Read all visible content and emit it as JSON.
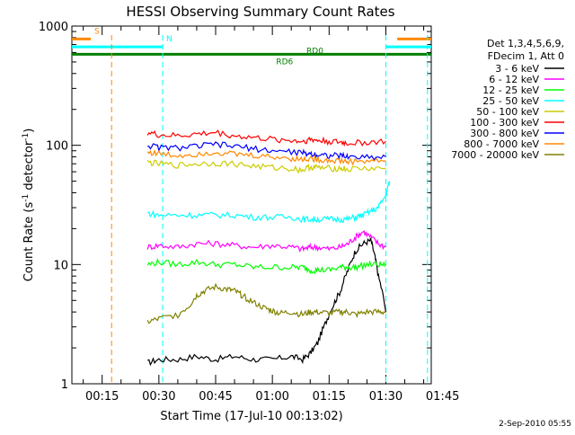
{
  "chart_data": {
    "type": "line",
    "title": "HESSI Observing Summary Count Rates",
    "xlabel": "Start Time (17-Jul-10 00:13:02)",
    "ylabel_main": "Count Rate (s",
    "ylabel_exp1": "-1",
    "ylabel_mid": " detector",
    "ylabel_exp2": "-1",
    "ylabel_end": ")",
    "footer": "2-Sep-2010 05:55",
    "y_scale": "log",
    "xlim_minutes": [
      7,
      102
    ],
    "ylim": [
      1,
      1000
    ],
    "x_ticks": [
      {
        "minutes": 15,
        "label": "00:15"
      },
      {
        "minutes": 30,
        "label": "00:30"
      },
      {
        "minutes": 45,
        "label": "00:45"
      },
      {
        "minutes": 60,
        "label": "01:00"
      },
      {
        "minutes": 75,
        "label": "01:15"
      },
      {
        "minutes": 90,
        "label": "01:30"
      },
      {
        "minutes": 105,
        "label": "01:45"
      }
    ],
    "y_ticks": [
      {
        "value": 1,
        "label": "1"
      },
      {
        "value": 10,
        "label": "10"
      },
      {
        "value": 100,
        "label": "100"
      },
      {
        "value": 1000,
        "label": "1000"
      }
    ],
    "legend_header": [
      "Det 1,3,4,5,6,9,",
      "FDecim 1, Att 0"
    ],
    "legend_placement": "right",
    "series": [
      {
        "name": "3 - 6 keV",
        "color": "#000000",
        "x": [
          27,
          30,
          35,
          40,
          45,
          50,
          55,
          60,
          65,
          68,
          70,
          72,
          74,
          76,
          78,
          80,
          82,
          84,
          86,
          87,
          88,
          90
        ],
        "y": [
          1.5,
          1.6,
          1.6,
          1.7,
          1.6,
          1.7,
          1.6,
          1.6,
          1.7,
          1.6,
          1.8,
          2.2,
          3.2,
          4.5,
          6,
          9,
          13,
          15,
          16,
          12,
          8,
          4
        ]
      },
      {
        "name": "6 - 12 keV",
        "color": "#ff00ff",
        "x": [
          27,
          30,
          35,
          40,
          45,
          50,
          55,
          60,
          65,
          68,
          70,
          72,
          75,
          78,
          80,
          82,
          84,
          86,
          88,
          90
        ],
        "y": [
          14,
          14.5,
          14,
          15,
          15,
          14.5,
          14,
          14.5,
          14,
          13.5,
          14,
          14,
          13.5,
          14,
          15,
          17,
          19,
          17,
          15,
          14
        ]
      },
      {
        "name": "12 - 25 keV",
        "color": "#00ff00",
        "x": [
          27,
          30,
          35,
          40,
          45,
          50,
          55,
          60,
          65,
          68,
          70,
          72,
          75,
          78,
          80,
          82,
          85,
          88,
          90
        ],
        "y": [
          10,
          10.5,
          10,
          10.5,
          10,
          10,
          9.5,
          9.5,
          9.5,
          9.5,
          9,
          9,
          9,
          9.5,
          9.5,
          9.5,
          10,
          10,
          10
        ]
      },
      {
        "name": "25 - 50 keV",
        "color": "#00ffff",
        "x": [
          27,
          30,
          35,
          40,
          45,
          50,
          55,
          60,
          65,
          68,
          70,
          72,
          75,
          78,
          80,
          82,
          84,
          86,
          88,
          90,
          91
        ],
        "y": [
          27,
          26,
          26,
          26,
          26,
          26,
          25,
          25,
          25,
          24,
          24,
          24,
          24,
          24,
          24,
          25,
          26,
          28,
          30,
          38,
          50
        ]
      },
      {
        "name": "50 - 100 keV",
        "color": "#cccc00",
        "x": [
          27,
          30,
          35,
          40,
          45,
          50,
          55,
          60,
          65,
          68,
          70,
          72,
          75,
          78,
          80,
          85,
          90
        ],
        "y": [
          72,
          70,
          68,
          70,
          71,
          70,
          67,
          65,
          64,
          62,
          66,
          65,
          64,
          64,
          63,
          64,
          64
        ]
      },
      {
        "name": "100 - 300 keV",
        "color": "#ff0000",
        "x": [
          27,
          30,
          35,
          40,
          45,
          50,
          55,
          60,
          65,
          68,
          70,
          72,
          75,
          78,
          80,
          85,
          90
        ],
        "y": [
          128,
          122,
          120,
          124,
          128,
          120,
          116,
          112,
          110,
          108,
          112,
          110,
          108,
          106,
          104,
          106,
          108
        ]
      },
      {
        "name": "300 - 800 keV",
        "color": "#0000ff",
        "x": [
          27,
          30,
          35,
          40,
          45,
          50,
          55,
          60,
          65,
          68,
          70,
          72,
          75,
          78,
          80,
          85,
          90
        ],
        "y": [
          100,
          96,
          95,
          98,
          102,
          98,
          94,
          90,
          88,
          86,
          85,
          84,
          82,
          82,
          80,
          80,
          80
        ]
      },
      {
        "name": "800 - 7000 keV",
        "color": "#ff8800",
        "x": [
          27,
          30,
          35,
          40,
          45,
          50,
          55,
          60,
          65,
          68,
          70,
          72,
          75,
          78,
          80,
          85,
          90
        ],
        "y": [
          88,
          85,
          82,
          85,
          88,
          84,
          82,
          80,
          78,
          76,
          78,
          76,
          75,
          74,
          73,
          74,
          74
        ]
      },
      {
        "name": "7000 - 20000 keV",
        "color": "#808000",
        "x": [
          27,
          30,
          35,
          38,
          40,
          42,
          45,
          48,
          50,
          52,
          55,
          58,
          60,
          62,
          65,
          68,
          70,
          72,
          75,
          78,
          80,
          82,
          85,
          88,
          90
        ],
        "y": [
          3.3,
          3.5,
          3.8,
          4.5,
          5.5,
          6,
          6.5,
          6.2,
          6,
          5.5,
          4.8,
          4.3,
          4.1,
          3.9,
          4,
          3.8,
          4,
          4,
          3.9,
          4,
          4,
          3.8,
          4,
          4,
          4
        ]
      }
    ],
    "state_lines": [
      {
        "label": "S",
        "color": "#ff8800",
        "value": 780,
        "segments": [
          [
            7,
            12
          ],
          [
            93,
            102
          ]
        ]
      },
      {
        "label": "N",
        "color": "#00ffff",
        "value": 670,
        "segments": [
          [
            7,
            31
          ],
          [
            90,
            102
          ]
        ]
      },
      {
        "label": "",
        "color": "#008000",
        "value": 580,
        "segments": [
          [
            7,
            102
          ]
        ]
      }
    ],
    "state_labels": [
      {
        "text": "RD0",
        "color": "#008000",
        "minutes": 69,
        "value": 580
      },
      {
        "text": "RD6",
        "color": "#008000",
        "minutes": 61,
        "value": 470
      }
    ],
    "vertical_markers": [
      {
        "color": "#ff8800",
        "minutes": 17.5,
        "dashed": true
      },
      {
        "color": "#00ffff",
        "minutes": 31,
        "dashed": true
      },
      {
        "color": "#00ffff",
        "minutes": 90,
        "dashed": true
      },
      {
        "color": "#ff8800",
        "minutes": 107,
        "dashed": true
      },
      {
        "color": "#00ffff",
        "minutes": 101,
        "dashed": true
      }
    ]
  }
}
